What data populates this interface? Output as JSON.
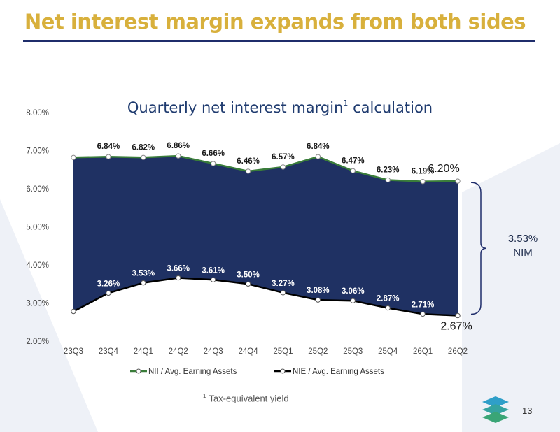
{
  "slide": {
    "title": "Net interest margin expands from both sides",
    "chart_title": "Quarterly net interest margin",
    "chart_title_sup": "1",
    "footnote_sup": "1",
    "footnote": "Tax-equivalent yield",
    "page_number": "13",
    "nim_value": "3.53%",
    "nim_label": "NIM"
  },
  "colors": {
    "title": "#d8b03c",
    "rule": "#1f2d6b",
    "area_fill": "#1f3163",
    "nii_line": "#3a7d3a",
    "nie_line": "#000000",
    "background_shape": "#eef1f7",
    "logo_top": "#2f9fc9",
    "logo_bottom": "#3aa576"
  },
  "chart_data": {
    "type": "area",
    "categories": [
      "23Q3",
      "23Q4",
      "24Q1",
      "24Q2",
      "24Q3",
      "24Q4",
      "25Q1",
      "25Q2",
      "25Q3",
      "25Q4",
      "26Q1",
      "26Q2"
    ],
    "series": [
      {
        "name": "NII / Avg. Earning Assets",
        "values": [
          6.82,
          6.84,
          6.82,
          6.86,
          6.66,
          6.46,
          6.57,
          6.84,
          6.47,
          6.23,
          6.19,
          6.2
        ],
        "labels": [
          "",
          "6.84%",
          "6.82%",
          "6.86%",
          "6.66%",
          "6.46%",
          "6.57%",
          "6.84%",
          "6.47%",
          "6.23%",
          "6.19%",
          "6.20%"
        ]
      },
      {
        "name": "NIE / Avg. Earning Assets",
        "values": [
          2.78,
          3.26,
          3.53,
          3.66,
          3.61,
          3.5,
          3.27,
          3.08,
          3.06,
          2.87,
          2.71,
          2.67
        ],
        "labels": [
          "",
          "3.26%",
          "3.53%",
          "3.66%",
          "3.61%",
          "3.50%",
          "3.27%",
          "3.08%",
          "3.06%",
          "2.87%",
          "2.71%",
          "2.67%"
        ]
      }
    ],
    "y_ticks": [
      "2.00%",
      "3.00%",
      "4.00%",
      "5.00%",
      "6.00%",
      "7.00%",
      "8.00%"
    ],
    "ylim": [
      2,
      8
    ],
    "grid": false,
    "legend": "bottom"
  }
}
